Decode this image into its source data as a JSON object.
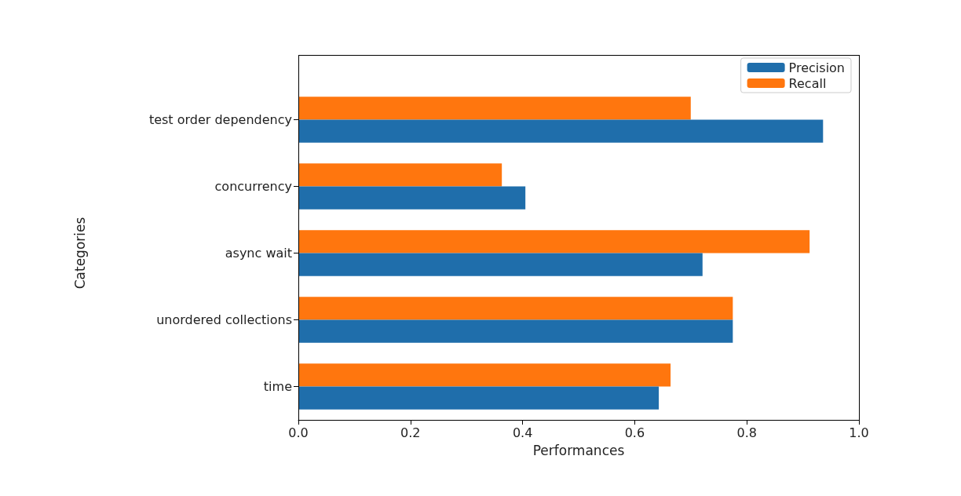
{
  "chart_data": {
    "type": "bar",
    "orientation": "horizontal",
    "xlabel": "Performances",
    "ylabel": "Categories",
    "categories": [
      "test order dependency",
      "concurrency",
      "async wait",
      "unordered collections",
      "time"
    ],
    "series": [
      {
        "name": "Precision",
        "color": "#1f6eab",
        "values": [
          0.936,
          0.405,
          0.721,
          0.775,
          0.643
        ]
      },
      {
        "name": "Recall",
        "color": "#ff760e",
        "values": [
          0.7,
          0.363,
          0.912,
          0.775,
          0.664
        ]
      }
    ],
    "xlim": [
      0,
      1
    ],
    "xticks": [
      {
        "value": 0,
        "label": "0.0"
      },
      {
        "value": 0.2,
        "label": "0.2"
      },
      {
        "value": 0.4,
        "label": "0.4"
      },
      {
        "value": 0.6,
        "label": "0.6"
      },
      {
        "value": 0.8,
        "label": "0.8"
      },
      {
        "value": 1,
        "label": "1.0"
      }
    ],
    "legend": "top right",
    "grid": false
  }
}
